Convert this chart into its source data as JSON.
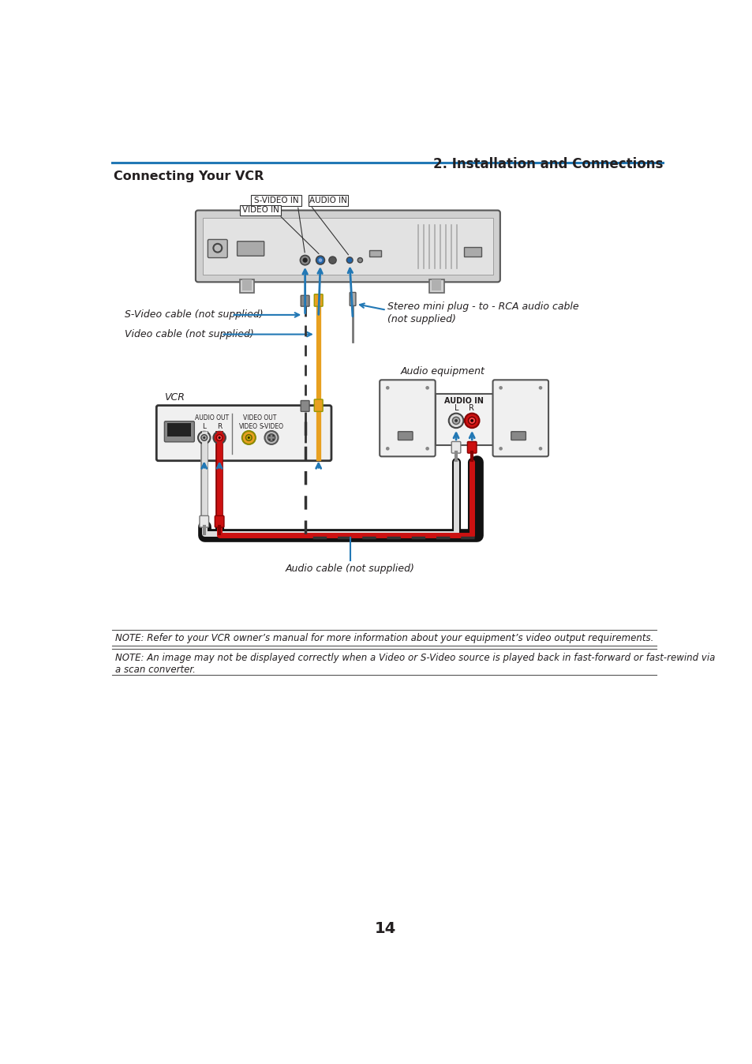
{
  "title_right": "2. Installation and Connections",
  "title_left": "Connecting Your VCR",
  "page_number": "14",
  "note1": "NOTE: Refer to your VCR owner’s manual for more information about your equipment’s video output requirements.",
  "note2": "NOTE: An image may not be displayed correctly when a Video or S-Video source is played back in fast-forward or fast-rewind via\na scan converter.",
  "label_svideo_in": "S-VIDEO IN",
  "label_video_in": "VIDEO IN",
  "label_audio_in": "AUDIO IN",
  "label_svideo_cable": "S-Video cable (not supplied)",
  "label_video_cable": "Video cable (not supplied)",
  "label_stereo_line1": "Stereo mini plug - to - RCA audio cable",
  "label_stereo_line2": "(not supplied)",
  "label_vcr": "VCR",
  "label_audio_out": "AUDIO OUT",
  "label_l": "L",
  "label_r": "R",
  "label_video": "VIDEO",
  "label_svideo": "S-VIDEO",
  "label_video_out": "VIDEO OUT",
  "label_audio_equipment": "Audio equipment",
  "label_audio_in_cap": "AUDIO IN",
  "label_audio_cable": "Audio cable (not supplied)",
  "bg_color": "#ffffff",
  "blue_color": "#2278b5",
  "text_color": "#231f20",
  "header_line_color": "#2278b5",
  "dashed_line_color": "#222222",
  "yellow_color": "#e8a020",
  "red_color": "#cc1111",
  "gray_port": "#aaaaaa",
  "light_gray": "#e8e8e8",
  "dark_border": "#333333",
  "proj_bg": "#d8d8d8",
  "vcr_bg": "#f5f5f5"
}
